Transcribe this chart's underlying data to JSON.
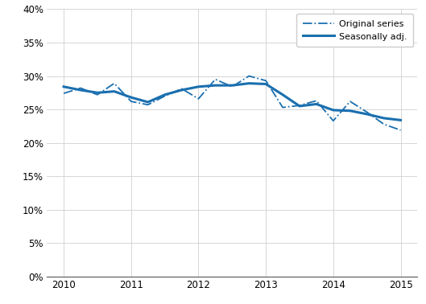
{
  "background_color": "#ffffff",
  "grid_color": "#d0d0d0",
  "line_color": "#1a6faf",
  "xlim": [
    2009.75,
    2015.25
  ],
  "ylim": [
    0.0,
    0.4
  ],
  "yticks": [
    0.0,
    0.05,
    0.1,
    0.15,
    0.2,
    0.25,
    0.3,
    0.35,
    0.4
  ],
  "xticks": [
    2010,
    2011,
    2012,
    2013,
    2014,
    2015
  ],
  "legend_labels": [
    "Original series",
    "Seasonally adj."
  ],
  "original_x": [
    2010.0,
    2010.25,
    2010.5,
    2010.75,
    2011.0,
    2011.25,
    2011.5,
    2011.75,
    2012.0,
    2012.25,
    2012.5,
    2012.75,
    2013.0,
    2013.25,
    2013.5,
    2013.75,
    2014.0,
    2014.25,
    2014.5,
    2014.75,
    2015.0
  ],
  "original_y": [
    0.274,
    0.282,
    0.272,
    0.289,
    0.262,
    0.257,
    0.27,
    0.281,
    0.266,
    0.295,
    0.284,
    0.3,
    0.293,
    0.253,
    0.256,
    0.263,
    0.233,
    0.262,
    0.246,
    0.228,
    0.219
  ],
  "seasonal_x": [
    2010.0,
    2010.25,
    2010.5,
    2010.75,
    2011.0,
    2011.25,
    2011.5,
    2011.75,
    2012.0,
    2012.25,
    2012.5,
    2012.75,
    2013.0,
    2013.25,
    2013.5,
    2013.75,
    2014.0,
    2014.25,
    2014.5,
    2014.75,
    2015.0
  ],
  "seasonal_y": [
    0.284,
    0.279,
    0.275,
    0.277,
    0.268,
    0.261,
    0.272,
    0.279,
    0.284,
    0.286,
    0.286,
    0.289,
    0.288,
    0.272,
    0.255,
    0.258,
    0.249,
    0.248,
    0.243,
    0.237,
    0.234
  ]
}
